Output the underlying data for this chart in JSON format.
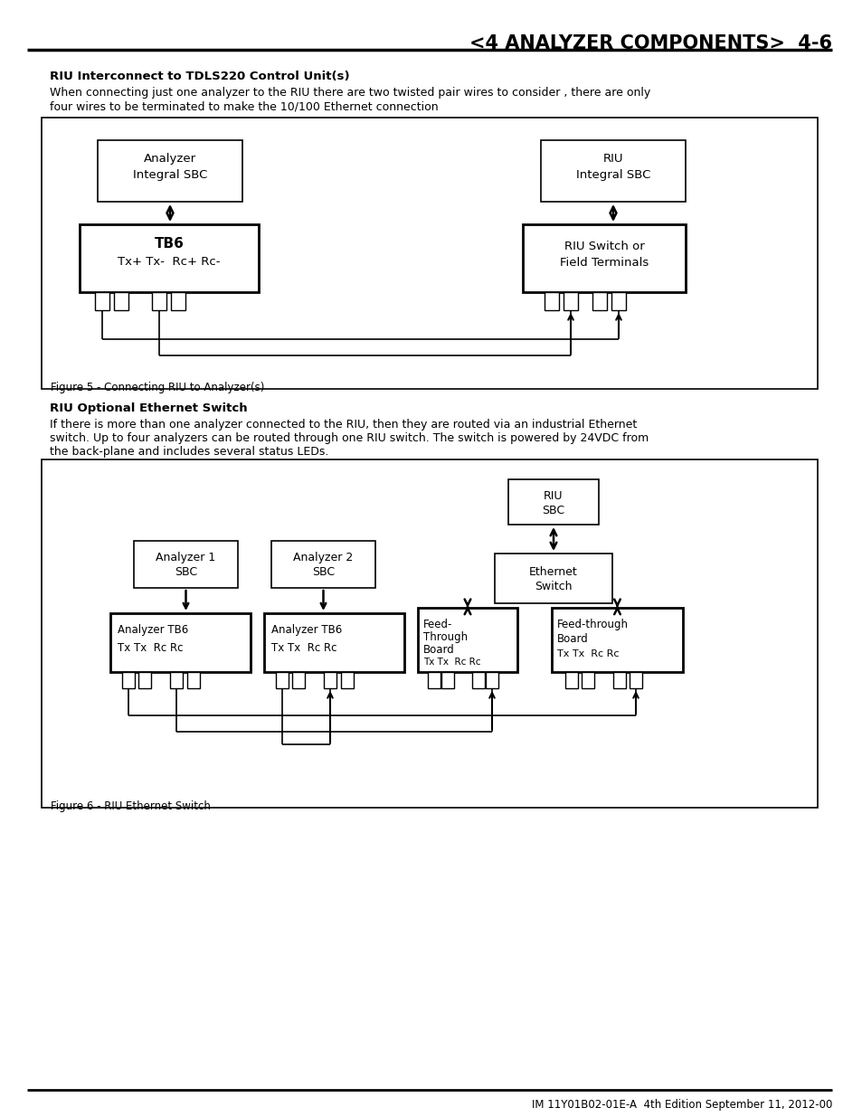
{
  "page_title": "<4 ANALYZER COMPONENTS>  4-6",
  "section1_heading": "RIU Interconnect to TDLS220 Control Unit(s)",
  "section1_body1": "When connecting just one analyzer to the RIU there are two twisted pair wires to consider , there are only",
  "section1_body2": "four wires to be terminated to make the 10/100 Ethernet connection",
  "fig1_caption": "Figure 5 - Connecting RIU to Analyzer(s)",
  "section2_heading": "RIU Optional Ethernet Switch",
  "section2_body1": "If there is more than one analyzer connected to the RIU, then they are routed via an industrial Ethernet",
  "section2_body2": "switch. Up to four analyzers can be routed through one RIU switch. The switch is powered by 24VDC from",
  "section2_body3": "the back-plane and includes several status LEDs.",
  "fig2_caption": "Figure 6 - RIU Ethernet Switch",
  "footer": "IM 11Y01B02-01E-A  4th Edition September 11, 2012-00",
  "bg_color": "#ffffff",
  "text_color": "#000000"
}
